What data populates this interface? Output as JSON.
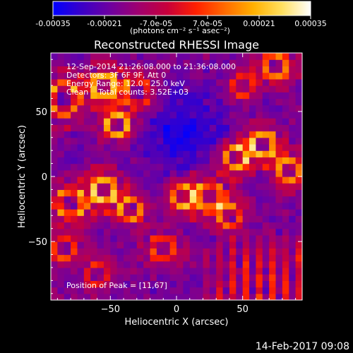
{
  "colorbar": {
    "ticks": [
      "-0.00035",
      "-0.00021",
      "-7.0e-05",
      "7.0e-05",
      "0.00021",
      "0.00035"
    ],
    "unit_label": "(photons cm⁻² s⁻¹ asec⁻²)",
    "stops": [
      "#0000ff",
      "#3a00c8",
      "#6e00a0",
      "#a0006e",
      "#c8003a",
      "#ff2000",
      "#ff6a00",
      "#ffb000",
      "#ffe060",
      "#ffffff"
    ]
  },
  "chart_data": {
    "type": "heatmap",
    "title": "Reconstructed RHESSI Image",
    "xlabel": "Heliocentric X (arcsec)",
    "ylabel": "Heliocentric Y (arcsec)",
    "xlim": [
      -95,
      95
    ],
    "ylim": [
      -95,
      95
    ],
    "xticks": [
      -50,
      0,
      50
    ],
    "yticks": [
      50,
      0,
      -50
    ],
    "info_lines": [
      "12-Sep-2014 21:26:08.000 to 21:36:08.000",
      "Detectors: 3F 6F 9F, Att 0",
      "Energy Range: 12.0 - 25.0 keV",
      "Clean    Total counts: 3.52E+03"
    ],
    "peak_label": "Position of Peak = [11,67]",
    "peak": [
      11,
      67
    ]
  },
  "timestamp": "14-Feb-2017 09:08"
}
